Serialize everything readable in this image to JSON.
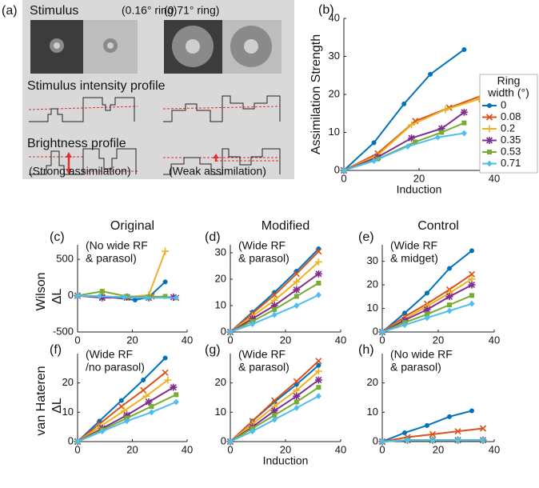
{
  "panel_a": {
    "label": "(a)",
    "stimulus_title": "Stimulus",
    "ring_labels": [
      "(0.16° ring)",
      "(0.71° ring)"
    ],
    "intensity_title": "Stimulus intensity profile",
    "brightness_title": "Brightness profile",
    "captions": [
      "(Strong assimilation)",
      "(Weak assimilation)"
    ]
  },
  "chart_data": [
    {
      "type": "line",
      "panel": "(b)",
      "ylabel": "Assimilation Strength",
      "xlabel": "Induction",
      "xlim": [
        0,
        40
      ],
      "xticks": [
        0,
        20,
        40
      ],
      "ylim": [
        0,
        40
      ],
      "yticks": [
        0,
        10,
        20,
        30,
        40
      ],
      "legend": "right",
      "legend_title": [
        "Ring",
        "width (°)"
      ],
      "series": [
        {
          "name": "0",
          "color": "#0072bd",
          "marker": "o",
          "x": [
            0,
            8,
            16,
            23,
            32
          ],
          "values": [
            0,
            7.3,
            17.5,
            25.3,
            31.8
          ]
        },
        {
          "name": "0.08",
          "color": "#d95319",
          "marker": "x",
          "x": [
            0,
            9,
            19,
            28,
            37
          ],
          "values": [
            0,
            4.5,
            13,
            16.5,
            19.8
          ]
        },
        {
          "name": "0.2",
          "color": "#edb120",
          "marker": "+",
          "x": [
            0,
            9,
            18,
            27,
            36
          ],
          "values": [
            0,
            4,
            12,
            16,
            18.8
          ]
        },
        {
          "name": "0.35",
          "color": "#7e2f8e",
          "marker": "*",
          "x": [
            0,
            9,
            18,
            26,
            32
          ],
          "values": [
            0,
            3.5,
            8.5,
            11,
            15.3
          ]
        },
        {
          "name": "0.53",
          "color": "#77ac30",
          "marker": "s",
          "x": [
            0,
            9,
            19,
            26,
            32
          ],
          "values": [
            0,
            3,
            7.5,
            10,
            12.5
          ]
        },
        {
          "name": "0.71",
          "color": "#4dbeee",
          "marker": "d",
          "x": [
            0,
            8,
            17,
            25,
            32
          ],
          "values": [
            0,
            2.5,
            6.3,
            8.7,
            9.8
          ]
        }
      ]
    },
    {
      "type": "line",
      "panel": "(c)",
      "title": "Original",
      "row_label": "Wilson",
      "ylabel": "ΔL",
      "annotation": [
        "(No wide RF",
        "& parasol)"
      ],
      "xlim": [
        0,
        40
      ],
      "xticks": [
        0,
        20,
        40
      ],
      "ylim": [
        -500,
        700
      ],
      "yticks": [
        -500,
        0,
        500
      ],
      "series": [
        {
          "color": "#0072bd",
          "marker": "o",
          "x": [
            0,
            9,
            21,
            26,
            32
          ],
          "values": [
            0,
            -10,
            -60,
            -20,
            190
          ]
        },
        {
          "color": "#d95319",
          "marker": "x",
          "x": [
            0,
            9,
            18,
            27,
            36
          ],
          "values": [
            0,
            -20,
            -30,
            -10,
            -30
          ]
        },
        {
          "color": "#edb120",
          "marker": "+",
          "x": [
            0,
            9,
            18,
            26,
            32
          ],
          "values": [
            0,
            -10,
            -20,
            10,
            610
          ]
        },
        {
          "color": "#7e2f8e",
          "marker": "*",
          "x": [
            0,
            9,
            18,
            26,
            35
          ],
          "values": [
            0,
            -30,
            -20,
            -30,
            -20
          ]
        },
        {
          "color": "#77ac30",
          "marker": "s",
          "x": [
            0,
            9,
            18,
            26,
            32
          ],
          "values": [
            0,
            60,
            -10,
            -20,
            -10
          ]
        },
        {
          "color": "#4dbeee",
          "marker": "d",
          "x": [
            0,
            8,
            17,
            25,
            36
          ],
          "values": [
            0,
            -10,
            -20,
            -30,
            -30
          ]
        }
      ]
    },
    {
      "type": "line",
      "panel": "(d)",
      "title": "Modified",
      "annotation": [
        "(Wide RF",
        "& parasol)"
      ],
      "xlim": [
        0,
        40
      ],
      "xticks": [
        0,
        20,
        40
      ],
      "ylim": [
        0,
        33
      ],
      "yticks": [
        0,
        10,
        20,
        30
      ],
      "series": [
        {
          "color": "#0072bd",
          "marker": "o",
          "x": [
            0,
            8,
            16,
            24,
            32
          ],
          "values": [
            0,
            7.5,
            15,
            23,
            31.5
          ]
        },
        {
          "color": "#d95319",
          "marker": "x",
          "x": [
            0,
            8,
            16,
            24,
            32
          ],
          "values": [
            0,
            7,
            14,
            22,
            30.5
          ]
        },
        {
          "color": "#edb120",
          "marker": "+",
          "x": [
            0,
            8,
            16,
            24,
            32
          ],
          "values": [
            0,
            6,
            12,
            19,
            26.5
          ]
        },
        {
          "color": "#7e2f8e",
          "marker": "*",
          "x": [
            0,
            8,
            16,
            24,
            32
          ],
          "values": [
            0,
            5,
            10,
            16,
            22
          ]
        },
        {
          "color": "#77ac30",
          "marker": "s",
          "x": [
            0,
            8,
            16,
            24,
            32
          ],
          "values": [
            0,
            4,
            8.5,
            13.5,
            18.5
          ]
        },
        {
          "color": "#4dbeee",
          "marker": "d",
          "x": [
            0,
            8,
            16,
            24,
            32
          ],
          "values": [
            0,
            3,
            6.5,
            10,
            14
          ]
        }
      ]
    },
    {
      "type": "line",
      "panel": "(e)",
      "title": "Control",
      "annotation": [
        "(Wide RF",
        "& midget)"
      ],
      "xlim": [
        0,
        40
      ],
      "xticks": [
        0,
        20,
        40
      ],
      "ylim": [
        0,
        37
      ],
      "yticks": [
        0,
        10,
        20,
        30
      ],
      "series": [
        {
          "color": "#0072bd",
          "marker": "o",
          "x": [
            0,
            8,
            16,
            24,
            32
          ],
          "values": [
            0,
            8,
            16.5,
            27,
            34.5
          ]
        },
        {
          "color": "#d95319",
          "marker": "x",
          "x": [
            0,
            8,
            16,
            24,
            32
          ],
          "values": [
            0,
            6.5,
            12,
            18,
            24.5
          ]
        },
        {
          "color": "#edb120",
          "marker": "+",
          "x": [
            0,
            8,
            16,
            24,
            32
          ],
          "values": [
            0,
            5.5,
            11,
            16.5,
            22.5
          ]
        },
        {
          "color": "#7e2f8e",
          "marker": "*",
          "x": [
            0,
            8,
            16,
            24,
            32
          ],
          "values": [
            0,
            5,
            9.5,
            15,
            20
          ]
        },
        {
          "color": "#77ac30",
          "marker": "s",
          "x": [
            0,
            8,
            16,
            24,
            32
          ],
          "values": [
            0,
            4,
            7.5,
            11.5,
            15.5
          ]
        },
        {
          "color": "#4dbeee",
          "marker": "d",
          "x": [
            0,
            8,
            16,
            24,
            32
          ],
          "values": [
            0,
            3,
            6,
            9,
            12
          ]
        }
      ]
    },
    {
      "type": "line",
      "panel": "(f)",
      "row_label": "van Hateren",
      "ylabel": "ΔL",
      "annotation": [
        "(Wide RF",
        "/no parasol)"
      ],
      "xlim": [
        0,
        40
      ],
      "xticks": [
        0,
        20,
        40
      ],
      "ylim": [
        0,
        30
      ],
      "yticks": [
        0,
        10,
        20
      ],
      "series": [
        {
          "color": "#0072bd",
          "marker": "o",
          "x": [
            0,
            8,
            16,
            24,
            32
          ],
          "values": [
            0,
            7,
            14,
            21,
            28.5
          ]
        },
        {
          "color": "#d95319",
          "marker": "x",
          "x": [
            0,
            8,
            16,
            24,
            32
          ],
          "values": [
            0,
            6,
            12,
            17.5,
            23.5
          ]
        },
        {
          "color": "#edb120",
          "marker": "+",
          "x": [
            0,
            8,
            17,
            25,
            33
          ],
          "values": [
            0,
            5,
            10.5,
            15.5,
            21
          ]
        },
        {
          "color": "#7e2f8e",
          "marker": "*",
          "x": [
            0,
            9,
            18,
            26,
            35
          ],
          "values": [
            0,
            4.5,
            9,
            13.5,
            18.5
          ]
        },
        {
          "color": "#77ac30",
          "marker": "s",
          "x": [
            0,
            9,
            18,
            27,
            36
          ],
          "values": [
            0,
            4,
            8,
            12,
            16
          ]
        },
        {
          "color": "#4dbeee",
          "marker": "d",
          "x": [
            0,
            9,
            18,
            27,
            36
          ],
          "values": [
            0,
            3.5,
            7,
            10,
            13.5
          ]
        }
      ]
    },
    {
      "type": "line",
      "panel": "(g)",
      "xlabel": "Induction",
      "annotation": [
        "(Wide RF",
        "& parasol)"
      ],
      "xlim": [
        0,
        40
      ],
      "xticks": [
        0,
        20,
        40
      ],
      "ylim": [
        0,
        30
      ],
      "yticks": [
        0,
        10,
        20
      ],
      "series": [
        {
          "color": "#0072bd",
          "marker": "o",
          "x": [
            0,
            8,
            16,
            24,
            32
          ],
          "values": [
            0,
            7,
            13.5,
            19.5,
            26
          ]
        },
        {
          "color": "#d95319",
          "marker": "x",
          "x": [
            0,
            8,
            16,
            24,
            32
          ],
          "values": [
            0,
            7,
            14,
            20.5,
            27.5
          ]
        },
        {
          "color": "#edb120",
          "marker": "+",
          "x": [
            0,
            8,
            16,
            24,
            32
          ],
          "values": [
            0,
            6,
            12,
            17.5,
            24
          ]
        },
        {
          "color": "#7e2f8e",
          "marker": "*",
          "x": [
            0,
            8,
            16,
            24,
            32
          ],
          "values": [
            0,
            5,
            10.5,
            15.5,
            21
          ]
        },
        {
          "color": "#77ac30",
          "marker": "s",
          "x": [
            0,
            8,
            16,
            24,
            32
          ],
          "values": [
            0,
            4.5,
            9,
            13.5,
            18.5
          ]
        },
        {
          "color": "#4dbeee",
          "marker": "d",
          "x": [
            0,
            8,
            16,
            24,
            32
          ],
          "values": [
            0,
            3.5,
            7.5,
            11.5,
            15.5
          ]
        }
      ]
    },
    {
      "type": "line",
      "panel": "(h)",
      "annotation": [
        "(No wide RF",
        "& parasol)"
      ],
      "xlim": [
        0,
        40
      ],
      "xticks": [
        0,
        20,
        40
      ],
      "ylim": [
        0,
        30
      ],
      "yticks": [
        0,
        10,
        20
      ],
      "series": [
        {
          "color": "#0072bd",
          "marker": "o",
          "x": [
            0,
            8,
            16,
            24,
            32
          ],
          "values": [
            0,
            3,
            5.5,
            8.5,
            10.5
          ]
        },
        {
          "color": "#d95319",
          "marker": "x",
          "x": [
            0,
            9,
            18,
            27,
            36
          ],
          "values": [
            0,
            1.5,
            2.5,
            3.5,
            4.5
          ]
        },
        {
          "color": "#edb120",
          "marker": "+",
          "x": [
            0,
            9,
            18,
            27,
            36
          ],
          "values": [
            0,
            0.5,
            0.5,
            0.5,
            0.5
          ]
        },
        {
          "color": "#7e2f8e",
          "marker": "*",
          "x": [
            0,
            9,
            18,
            27,
            36
          ],
          "values": [
            0,
            0.5,
            0.5,
            0.5,
            0.5
          ]
        },
        {
          "color": "#77ac30",
          "marker": "s",
          "x": [
            0,
            9,
            18,
            27,
            36
          ],
          "values": [
            0,
            0.5,
            0.5,
            0.5,
            0.5
          ]
        },
        {
          "color": "#4dbeee",
          "marker": "d",
          "x": [
            0,
            9,
            18,
            27,
            36
          ],
          "values": [
            0,
            0.5,
            0.5,
            0.5,
            0.5
          ]
        }
      ]
    }
  ]
}
